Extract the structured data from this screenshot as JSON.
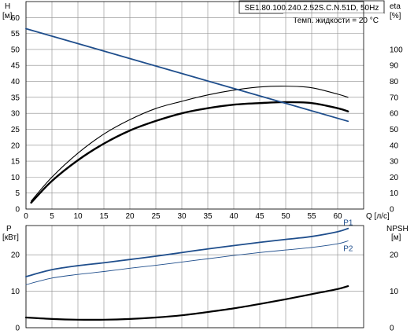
{
  "colors": {
    "blue": "#1f4e8c",
    "black": "#000000",
    "grid": "#8a8a8a"
  },
  "chart_data": [
    {
      "type": "line",
      "title": "SE1.80.100.240.2.52S.C.N.51D, 50Hz",
      "annotation": "Темп. жидкости = 20 °C",
      "xlabel": "Q [л/с]",
      "ylabel_left": "H",
      "ylabel_left_unit": "[м]",
      "ylabel_right": "eta",
      "ylabel_right_unit": "[%]",
      "grid": true,
      "xlim": [
        0,
        65
      ],
      "ylim_left": [
        0,
        65
      ],
      "ylim_right": [
        0,
        130
      ],
      "xticks": [
        0,
        5,
        10,
        15,
        20,
        25,
        30,
        35,
        40,
        45,
        50,
        55,
        60
      ],
      "yticks_left": [
        0,
        5,
        10,
        15,
        20,
        25,
        30,
        35,
        40,
        45,
        50,
        55,
        60
      ],
      "yticks_right": [
        0,
        10,
        20,
        30,
        40,
        50,
        60,
        70,
        80,
        90,
        100
      ],
      "series": [
        {
          "axis": "left",
          "color": "#000000",
          "width": 2.4,
          "x": [
            1,
            5,
            10,
            15,
            20,
            25,
            30,
            35,
            40,
            45,
            50,
            55,
            60,
            62
          ],
          "y": [
            2,
            8.8,
            15.3,
            20.5,
            24.6,
            27.6,
            30.0,
            31.6,
            32.7,
            33.2,
            33.5,
            33.2,
            31.6,
            30.6
          ]
        },
        {
          "axis": "right",
          "color": "#000000",
          "width": 1.1,
          "x": [
            1,
            5,
            10,
            15,
            20,
            25,
            30,
            35,
            40,
            45,
            50,
            55,
            60,
            62
          ],
          "y": [
            5,
            20,
            35,
            47,
            56,
            63,
            67.5,
            71.5,
            74.5,
            76.5,
            77,
            76,
            72,
            70
          ]
        },
        {
          "axis": "left",
          "color": "#1f4e8c",
          "width": 1.8,
          "x": [
            0,
            62
          ],
          "y": [
            56.5,
            27.5
          ]
        }
      ]
    },
    {
      "type": "line",
      "ylabel_left": "P",
      "ylabel_left_unit": "[кВт]",
      "ylabel_right": "NPSH",
      "ylabel_right_unit": "[м]",
      "grid": true,
      "xlim": [
        0,
        65
      ],
      "ylim_left": [
        0,
        28
      ],
      "ylim_right": [
        0,
        28
      ],
      "xticks": [
        0,
        5,
        10,
        15,
        20,
        25,
        30,
        35,
        40,
        45,
        50,
        55,
        60
      ],
      "yticks_left": [
        0,
        10,
        20
      ],
      "yticks_right": [
        0,
        10,
        20
      ],
      "series": [
        {
          "name": "P1",
          "axis": "left",
          "color": "#1f4e8c",
          "width": 1.8,
          "x": [
            0,
            5,
            10,
            15,
            20,
            25,
            30,
            35,
            40,
            45,
            50,
            55,
            60,
            62
          ],
          "y": [
            14,
            15.9,
            17.0,
            17.8,
            18.7,
            19.6,
            20.6,
            21.6,
            22.5,
            23.4,
            24.2,
            25.0,
            26.3,
            27.2
          ]
        },
        {
          "name": "P2",
          "axis": "left",
          "color": "#1f4e8c",
          "width": 0.9,
          "x": [
            0,
            5,
            10,
            15,
            20,
            25,
            30,
            35,
            40,
            45,
            50,
            55,
            60,
            62
          ],
          "y": [
            11.8,
            13.6,
            14.6,
            15.4,
            16.3,
            17.1,
            18.0,
            18.9,
            19.8,
            20.6,
            21.3,
            22.0,
            23.0,
            23.8
          ]
        },
        {
          "axis": "right",
          "color": "#000000",
          "width": 2.2,
          "x": [
            0,
            5,
            10,
            15,
            20,
            25,
            30,
            35,
            40,
            45,
            50,
            55,
            60,
            62
          ],
          "y": [
            2.8,
            2.4,
            2.2,
            2.2,
            2.4,
            2.8,
            3.4,
            4.3,
            5.3,
            6.5,
            7.8,
            9.2,
            10.6,
            11.4
          ]
        }
      ]
    }
  ]
}
